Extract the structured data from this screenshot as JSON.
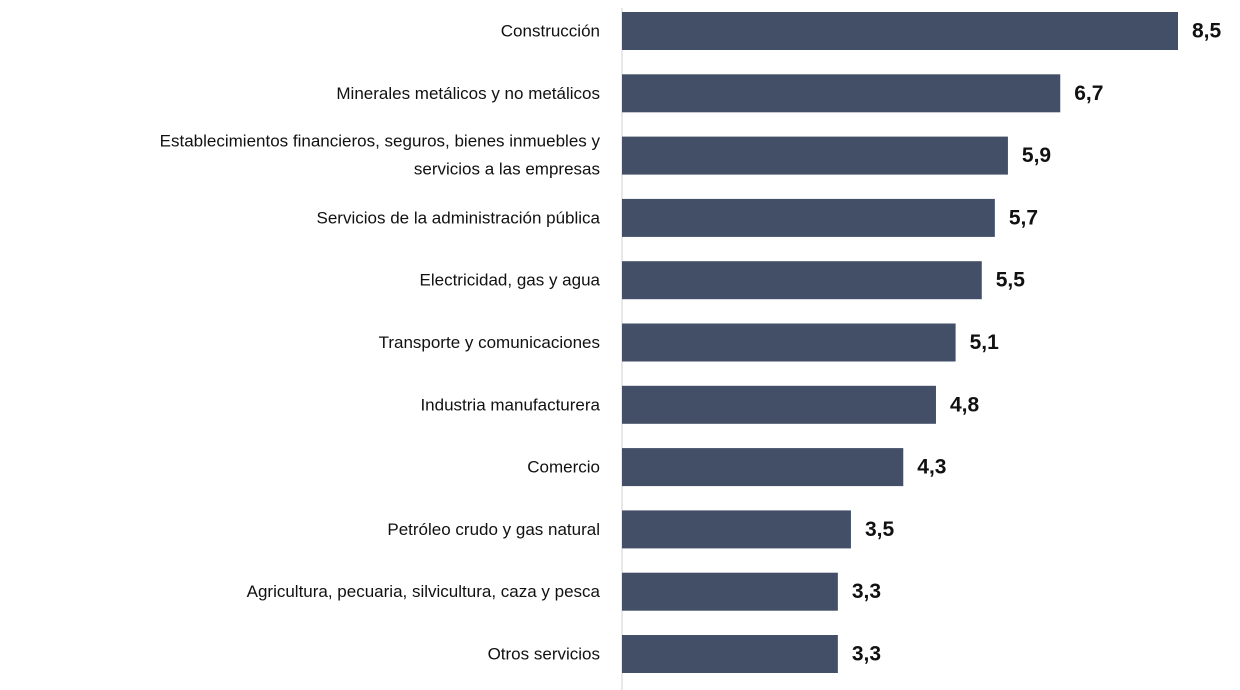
{
  "chart_data": {
    "type": "bar",
    "orientation": "horizontal",
    "categories": [
      "Construcción",
      "Minerales metálicos y no metálicos",
      "Establecimientos financieros, seguros, bienes inmuebles y\nservicios a las empresas",
      "Servicios de la administración pública",
      "Electricidad, gas y agua",
      "Transporte y comunicaciones",
      "Industria manufacturera",
      "Comercio",
      "Petróleo crudo y gas natural",
      "Agricultura, pecuaria, silvicultura, caza y pesca",
      "Otros servicios"
    ],
    "values": [
      8.5,
      6.7,
      5.9,
      5.7,
      5.5,
      5.1,
      4.8,
      4.3,
      3.5,
      3.3,
      3.3
    ],
    "value_labels": [
      "8,5",
      "6,7",
      "5,9",
      "5,7",
      "5,5",
      "5,1",
      "4,8",
      "4,3",
      "3,5",
      "3,3",
      "3,3"
    ],
    "color": "#434f66"
  }
}
